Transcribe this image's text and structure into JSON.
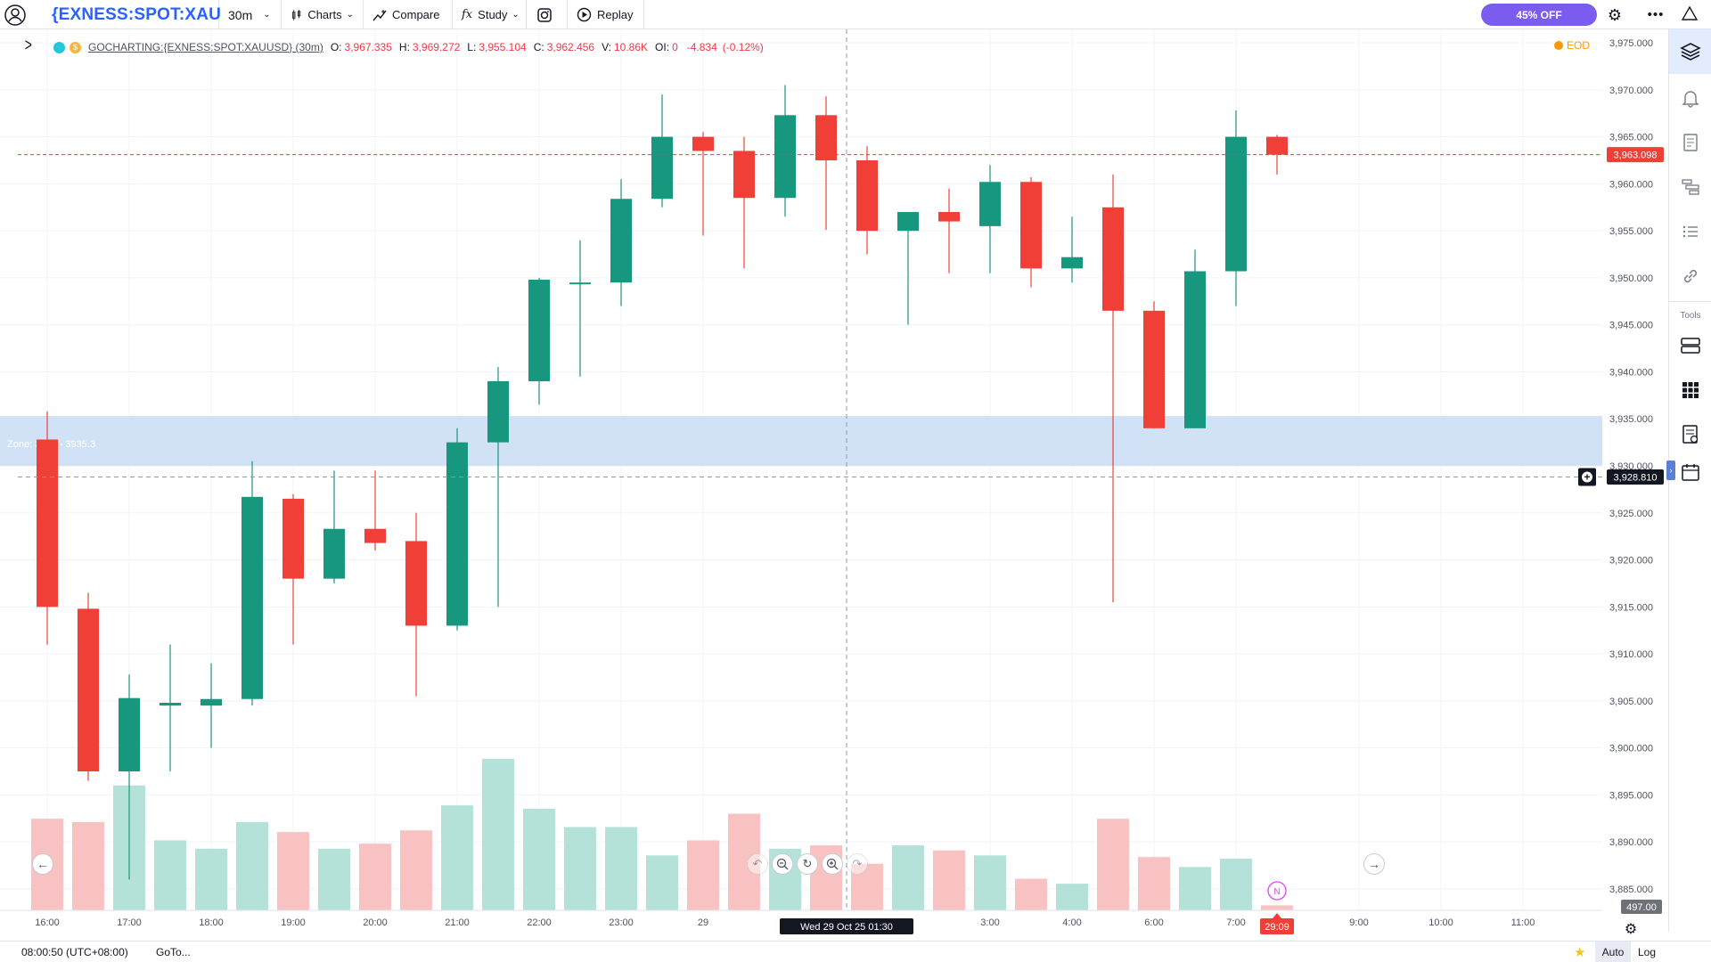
{
  "header": {
    "symbol": "{EXNESS:SPOT:XAU",
    "interval": "30m",
    "charts_label": "Charts",
    "compare_label": "Compare",
    "study_label": "Study",
    "replay_label": "Replay",
    "offer_label": "45% OFF"
  },
  "legend": {
    "title": "GOCHARTING:{EXNESS:SPOT:XAUUSD} (30m)",
    "open_label": "O:",
    "open": "3,967.335",
    "high_label": "H:",
    "high": "3,969.272",
    "low_label": "L:",
    "low": "3,955.104",
    "close_label": "C:",
    "close": "3,962.456",
    "volume_label": "V:",
    "volume": "10.86K",
    "oi_label": "OI:",
    "oi": "0",
    "change": "-4.834",
    "change_pct": "(-0.12%)",
    "eod_label": "EOD"
  },
  "markers": {
    "last_price": "3,963.098",
    "crosshair_price": "3,928.810",
    "crosshair_time": "Wed 29 Oct 25 01:30",
    "zone_label": "Zone: 3930 - 3935.3",
    "countdown": "29:09",
    "volume_last": "497.00",
    "news_badge": "N"
  },
  "right_toolbar": {
    "tools_label": "Tools",
    "icons": [
      "layers-icon",
      "bell-icon",
      "order-book-icon",
      "dom-icon",
      "list-icon",
      "link-icon",
      "panel-icon",
      "grid-icon",
      "report-icon",
      "calendar-icon"
    ]
  },
  "bottom_bar": {
    "time": "08:00:50 (UTC+08:00)",
    "goto_label": "GoTo...",
    "auto_label": "Auto",
    "log_label": "Log"
  },
  "colors": {
    "up": "#26a69a",
    "up_body": "#17977e",
    "down": "#ef3f36",
    "up_volume": "#b4e1d8",
    "down_volume": "#f8c2c2",
    "zone": "#cfe0f7",
    "offer": "#7b5cf0"
  },
  "chart_data": {
    "type": "candlestick",
    "ylim": [
      3884,
      3976
    ],
    "y_ticks": [
      3885,
      3890,
      3895,
      3900,
      3905,
      3910,
      3915,
      3920,
      3925,
      3930,
      3935,
      3940,
      3945,
      3950,
      3955,
      3960,
      3965,
      3970,
      3975
    ],
    "y_tick_labels": [
      "3,885.000",
      "3,890.000",
      "3,895.000",
      "3,900.000",
      "3,905.000",
      "3,910.000",
      "3,915.000",
      "3,920.000",
      "3,925.000",
      "3,930.000",
      "3,935.000",
      "3,940.000",
      "3,945.000",
      "3,950.000",
      "3,955.000",
      "3,960.000",
      "3,965.000",
      "3,970.000",
      "3,975.000"
    ],
    "x_tick_labels": [
      {
        "i": 0,
        "label": "16:00"
      },
      {
        "i": 2,
        "label": "17:00"
      },
      {
        "i": 4,
        "label": "18:00"
      },
      {
        "i": 6,
        "label": "19:00"
      },
      {
        "i": 8,
        "label": "20:00"
      },
      {
        "i": 10,
        "label": "21:00"
      },
      {
        "i": 12,
        "label": "22:00"
      },
      {
        "i": 14,
        "label": "23:00"
      },
      {
        "i": 16,
        "label": "29"
      },
      {
        "i": 23,
        "label": "3:00"
      },
      {
        "i": 25,
        "label": "4:00"
      },
      {
        "i": 27,
        "label": "6:00"
      },
      {
        "i": 29,
        "label": "7:00"
      },
      {
        "i": 32,
        "label": "9:00"
      },
      {
        "i": 34,
        "label": "10:00"
      },
      {
        "i": 36,
        "label": "11:00"
      }
    ],
    "candles": [
      {
        "o": 3932.8,
        "h": 3935.8,
        "l": 3911.0,
        "c": 3915.0,
        "v": 0.55
      },
      {
        "o": 3914.8,
        "h": 3916.5,
        "l": 3896.5,
        "c": 3897.5,
        "v": 0.53
      },
      {
        "o": 3897.5,
        "h": 3907.8,
        "l": 3886.0,
        "c": 3905.3,
        "v": 0.75
      },
      {
        "o": 3904.5,
        "h": 3911.0,
        "l": 3897.5,
        "c": 3904.8,
        "v": 0.42
      },
      {
        "o": 3904.5,
        "h": 3909.0,
        "l": 3900.0,
        "c": 3905.2,
        "v": 0.37
      },
      {
        "o": 3905.2,
        "h": 3930.5,
        "l": 3904.5,
        "c": 3926.7,
        "v": 0.53
      },
      {
        "o": 3926.5,
        "h": 3927.0,
        "l": 3911.0,
        "c": 3918.0,
        "v": 0.47
      },
      {
        "o": 3918.0,
        "h": 3929.5,
        "l": 3917.5,
        "c": 3923.3,
        "v": 0.37
      },
      {
        "o": 3923.3,
        "h": 3929.5,
        "l": 3921.0,
        "c": 3921.8,
        "v": 0.4
      },
      {
        "o": 3922.0,
        "h": 3925.0,
        "l": 3905.5,
        "c": 3913.0,
        "v": 0.48
      },
      {
        "o": 3913.0,
        "h": 3934.0,
        "l": 3912.5,
        "c": 3932.5,
        "v": 0.63
      },
      {
        "o": 3932.5,
        "h": 3940.5,
        "l": 3915.0,
        "c": 3939.0,
        "v": 0.91
      },
      {
        "o": 3939.0,
        "h": 3950.0,
        "l": 3936.5,
        "c": 3949.8,
        "v": 0.61
      },
      {
        "o": 3949.5,
        "h": 3954.0,
        "l": 3939.5,
        "c": 3949.5,
        "v": 0.5
      },
      {
        "o": 3949.5,
        "h": 3960.5,
        "l": 3947.0,
        "c": 3958.4,
        "v": 0.5
      },
      {
        "o": 3958.4,
        "h": 3969.5,
        "l": 3957.5,
        "c": 3965.0,
        "v": 0.33
      },
      {
        "o": 3965.0,
        "h": 3965.5,
        "l": 3954.5,
        "c": 3963.5,
        "v": 0.42
      },
      {
        "o": 3963.5,
        "h": 3965.0,
        "l": 3951.0,
        "c": 3958.5,
        "v": 0.58
      },
      {
        "o": 3958.5,
        "h": 3970.5,
        "l": 3956.5,
        "c": 3967.3,
        "v": 0.37
      },
      {
        "o": 3967.3,
        "h": 3969.3,
        "l": 3955.1,
        "c": 3962.5,
        "v": 0.39
      },
      {
        "o": 3962.5,
        "h": 3964.0,
        "l": 3952.5,
        "c": 3955.0,
        "v": 0.28
      },
      {
        "o": 3955.0,
        "h": 3957.0,
        "l": 3945.0,
        "c": 3957.0,
        "v": 0.39
      },
      {
        "o": 3957.0,
        "h": 3959.5,
        "l": 3950.5,
        "c": 3956.0,
        "v": 0.36
      },
      {
        "o": 3955.5,
        "h": 3962.0,
        "l": 3950.5,
        "c": 3960.2,
        "v": 0.33
      },
      {
        "o": 3960.2,
        "h": 3960.7,
        "l": 3949.0,
        "c": 3951.0,
        "v": 0.19
      },
      {
        "o": 3951.0,
        "h": 3956.5,
        "l": 3949.5,
        "c": 3952.2,
        "v": 0.16
      },
      {
        "o": 3957.5,
        "h": 3961.0,
        "l": 3915.5,
        "c": 3946.5,
        "v": 0.55
      },
      {
        "o": 3946.5,
        "h": 3947.5,
        "l": 3934.0,
        "c": 3934.0,
        "v": 0.32
      },
      {
        "o": 3934.0,
        "h": 3953.0,
        "l": 3934.0,
        "c": 3950.7,
        "v": 0.26
      },
      {
        "o": 3950.7,
        "h": 3967.8,
        "l": 3947.0,
        "c": 3965.0,
        "v": 0.31
      },
      {
        "o": 3965.0,
        "h": 3965.2,
        "l": 3961.0,
        "c": 3963.1,
        "v": 0.03
      }
    ]
  }
}
